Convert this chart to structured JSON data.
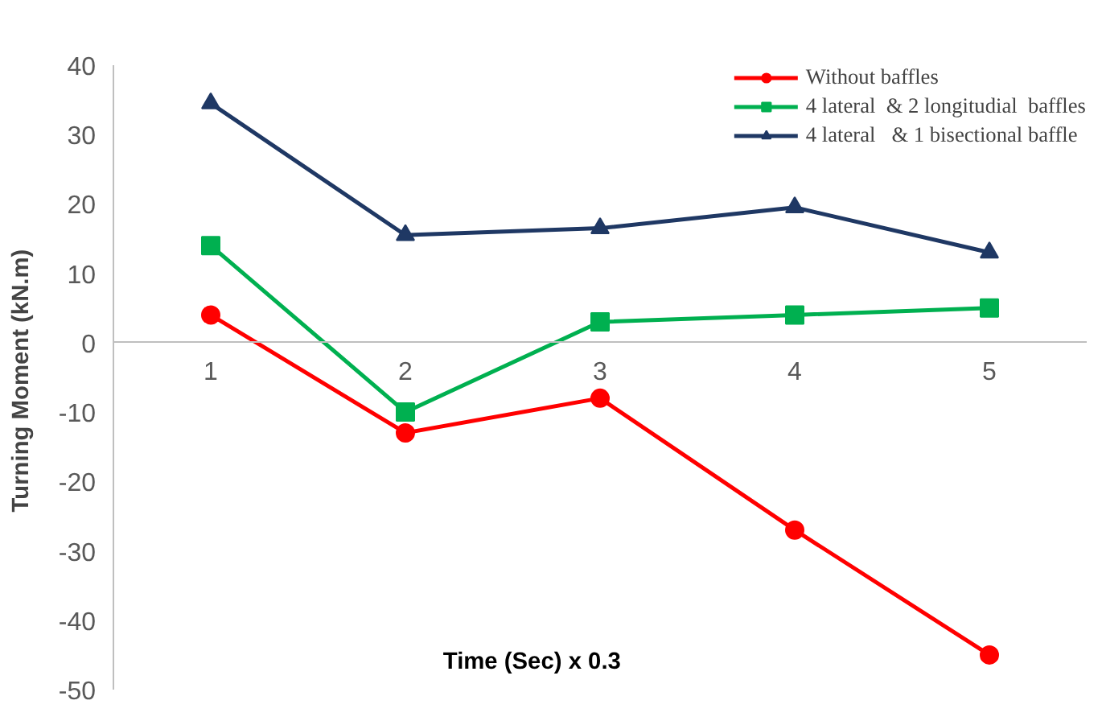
{
  "chart_data": {
    "type": "line",
    "xlabel": "Time (Sec) x 0.3",
    "ylabel": "Turning Moment  (kN.m)",
    "categories": [
      "1",
      "2",
      "3",
      "4",
      "5"
    ],
    "series": [
      {
        "name": "Without baffles",
        "color": "#ff0000",
        "marker": "circle",
        "values": [
          4,
          -13,
          -8,
          -27,
          -45
        ]
      },
      {
        "name": "4 lateral  & 2 longitudial  baffles",
        "color": "#00b050",
        "marker": "square",
        "values": [
          14,
          -10,
          3,
          4,
          5
        ]
      },
      {
        "name": "4 lateral   & 1 bisectional baffle",
        "color": "#1f3864",
        "marker": "triangle",
        "values": [
          34.5,
          15.5,
          16.5,
          19.5,
          13
        ]
      }
    ],
    "ylim": [
      -50,
      40
    ],
    "yticks": [
      -50,
      -40,
      -30,
      -20,
      -10,
      0,
      10,
      20,
      30,
      40
    ],
    "grid": false,
    "legend": "top right"
  }
}
